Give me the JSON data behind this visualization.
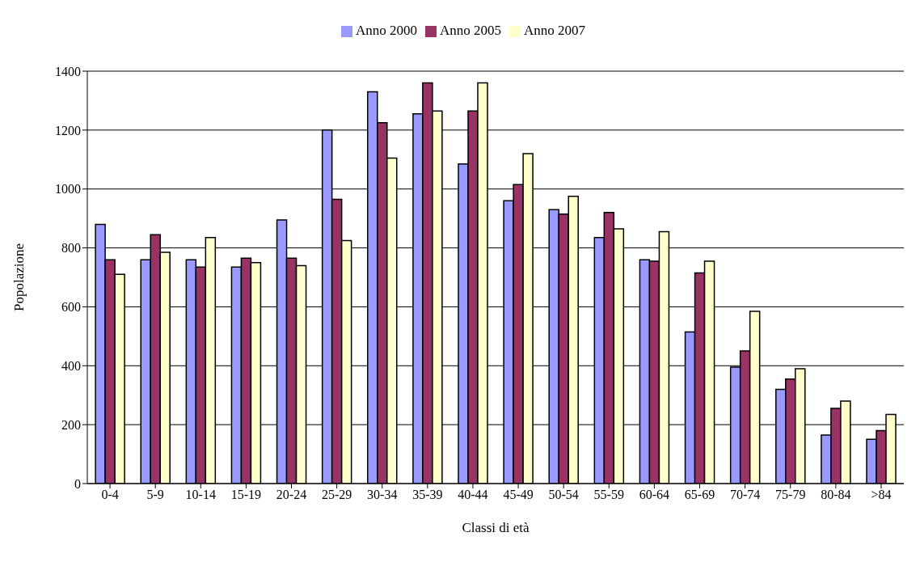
{
  "chart_data": {
    "type": "bar",
    "xlabel": "Classi di età",
    "ylabel": "Popolazione",
    "categories": [
      "0-4",
      "5-9",
      "10-14",
      "15-19",
      "20-24",
      "25-29",
      "30-34",
      "35-39",
      "40-44",
      "45-49",
      "50-54",
      "55-59",
      "60-64",
      "65-69",
      "70-74",
      "75-79",
      "80-84",
      ">84"
    ],
    "series": [
      {
        "name": "Anno 2000",
        "color": "#9999ff",
        "values": [
          880,
          760,
          760,
          735,
          895,
          1200,
          1330,
          1255,
          1085,
          960,
          930,
          835,
          760,
          515,
          395,
          320,
          165,
          150
        ]
      },
      {
        "name": "Anno 2005",
        "color": "#993366",
        "values": [
          760,
          845,
          735,
          765,
          765,
          965,
          1225,
          1360,
          1265,
          1015,
          915,
          920,
          755,
          715,
          450,
          355,
          255,
          180
        ]
      },
      {
        "name": "Anno 2007",
        "color": "#ffffcc",
        "values": [
          710,
          785,
          835,
          750,
          740,
          825,
          1105,
          1265,
          1360,
          1120,
          975,
          865,
          855,
          755,
          585,
          390,
          280,
          235
        ]
      }
    ],
    "ylim": [
      0,
      1400
    ],
    "yticks": [
      0,
      200,
      400,
      600,
      800,
      1000,
      1200,
      1400
    ],
    "grid": "y",
    "legend": "top"
  }
}
